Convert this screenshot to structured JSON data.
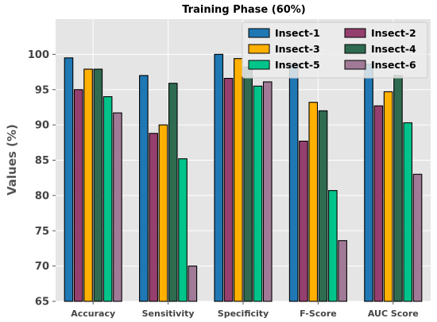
{
  "chart_data": {
    "type": "bar",
    "title": "Training Phase (60%)",
    "xlabel": "",
    "ylabel": "Values (%)",
    "ylim": [
      65,
      105
    ],
    "yticks": [
      65,
      70,
      75,
      80,
      85,
      90,
      95,
      100
    ],
    "grid": true,
    "legend_position": "top-right",
    "categories": [
      "Accuracy",
      "Sensitivity",
      "Specificity",
      "F-Score",
      "AUC Score"
    ],
    "series": [
      {
        "name": "Insect-1",
        "color": "#1f77b4",
        "values": [
          99.5,
          97.0,
          100.0,
          98.6,
          98.6
        ]
      },
      {
        "name": "Insect-2",
        "color": "#953f6e",
        "values": [
          95.0,
          88.8,
          96.6,
          87.7,
          92.7
        ]
      },
      {
        "name": "Insect-3",
        "color": "#ffb000",
        "values": [
          97.9,
          90.0,
          99.4,
          93.2,
          94.7
        ]
      },
      {
        "name": "Insect-4",
        "color": "#2f6b50",
        "values": [
          97.9,
          95.9,
          98.2,
          92.0,
          97.0
        ]
      },
      {
        "name": "Insect-5",
        "color": "#00c48a",
        "values": [
          94.0,
          85.2,
          95.5,
          80.7,
          90.3
        ]
      },
      {
        "name": "Insect-6",
        "color": "#a07a96",
        "values": [
          91.7,
          70.0,
          96.1,
          73.6,
          83.0
        ]
      }
    ]
  }
}
